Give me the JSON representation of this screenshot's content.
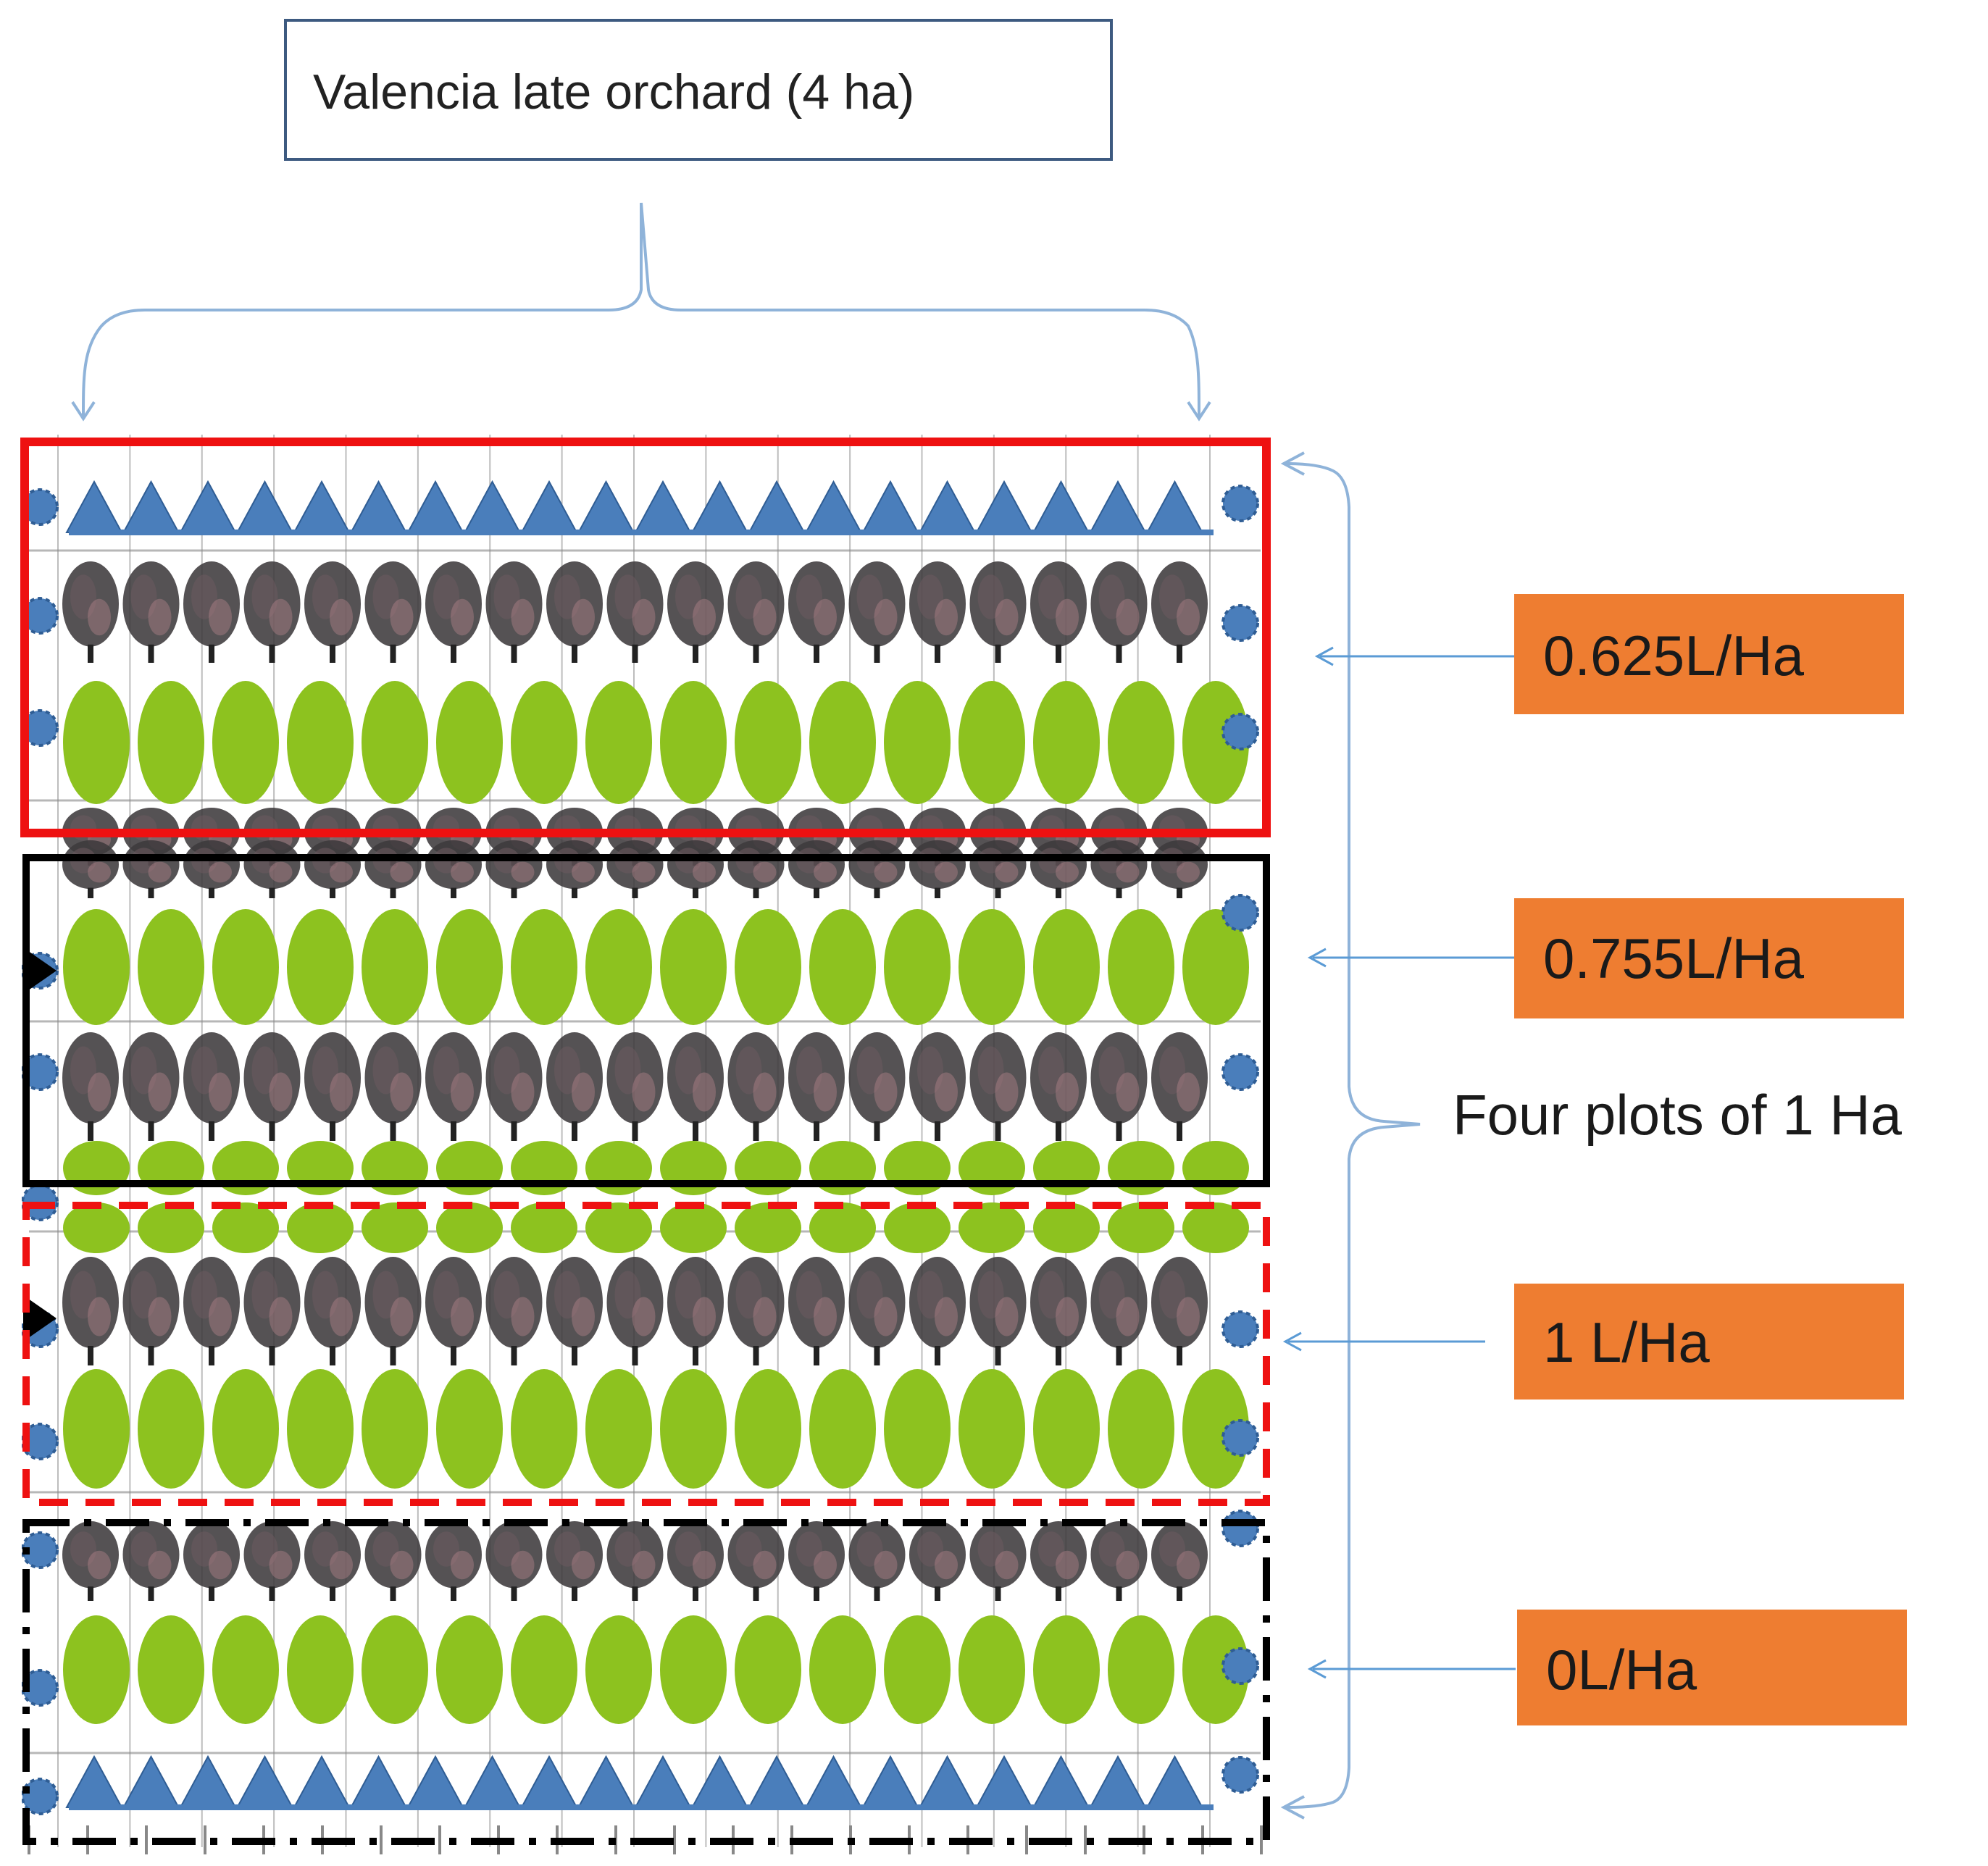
{
  "title": "Valencia late orchard (4 ha)",
  "plots_label": "Four plots of 1 Ha",
  "colors": {
    "title_border": "#3d5a80",
    "bracket": "#8fb3d9",
    "label_fill": "#ee7d31",
    "tree_green": "#8dc21f",
    "tree_dark": "#3d3a3c",
    "triangle_blue": "#4a7ebb",
    "grid": "#888888"
  },
  "plots": [
    {
      "id": "plot-1",
      "label": "0.625L/Ha",
      "border_color": "#ee1111",
      "border_style": "solid"
    },
    {
      "id": "plot-2",
      "label": "0.755L/Ha",
      "border_color": "#000000",
      "border_style": "solid"
    },
    {
      "id": "plot-3",
      "label": "1 L/Ha",
      "border_color": "#ee1111",
      "border_style": "dashed"
    },
    {
      "id": "plot-4",
      "label": "0L/Ha",
      "border_color": "#000000",
      "border_style": "dash-dot"
    }
  ]
}
